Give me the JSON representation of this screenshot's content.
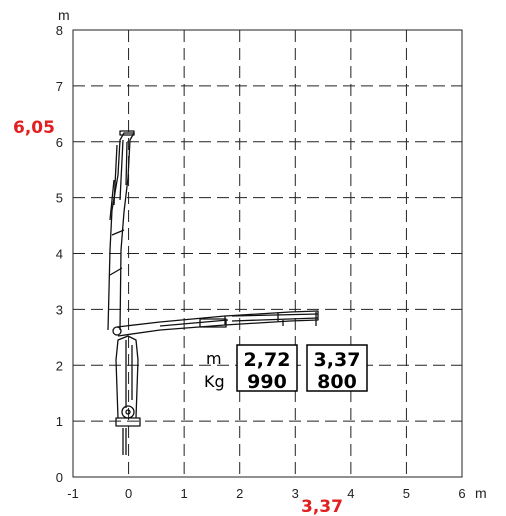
{
  "chart_data": {
    "type": "diagram",
    "x_unit": "m",
    "y_unit": "m",
    "xlim": [
      -1,
      6
    ],
    "ylim": [
      0,
      8
    ],
    "x_ticks": [
      "-1",
      "0",
      "1",
      "2",
      "3",
      "4",
      "5",
      "6"
    ],
    "y_ticks": [
      "0",
      "1",
      "2",
      "3",
      "4",
      "5",
      "6",
      "7",
      "8"
    ],
    "max_height": {
      "label": "6,05",
      "value": 6.05
    },
    "max_reach": {
      "label": "3,37",
      "value": 3.37
    },
    "row_labels": {
      "distance": "m",
      "load": "Kg"
    },
    "load_points": [
      {
        "distance": "2,72",
        "load": "990",
        "x": 2.72
      },
      {
        "distance": "3,37",
        "load": "800",
        "x": 3.37
      }
    ]
  }
}
